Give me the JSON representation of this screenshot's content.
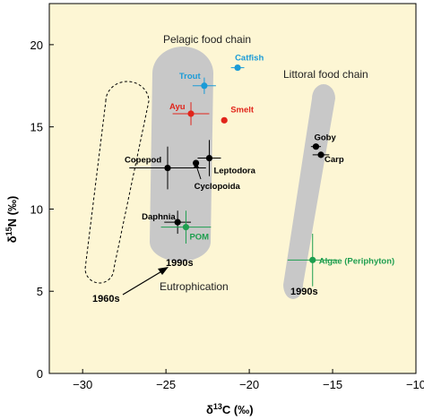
{
  "chart_data": {
    "type": "scatter",
    "xlabel": "δ13C (‰)",
    "ylabel": "δ15N (‰)",
    "xlim": [
      -32,
      -10
    ],
    "ylim": [
      0,
      22.5
    ],
    "xticks": [
      -30,
      -25,
      -20,
      -15,
      -10
    ],
    "yticks": [
      0,
      5,
      10,
      15,
      20
    ],
    "background_color": "#fdf6d4",
    "grid": false,
    "points": [
      {
        "label": "Catfish",
        "x": -20.7,
        "y": 18.6,
        "xerr": 0.4,
        "yerr": 0.0,
        "color": "#1a9bd7"
      },
      {
        "label": "Trout",
        "x": -22.7,
        "y": 17.5,
        "xerr": 0.7,
        "yerr": 0.5,
        "color": "#1a9bd7"
      },
      {
        "label": "Ayu",
        "x": -23.5,
        "y": 15.8,
        "xerr": 1.1,
        "yerr": 0.7,
        "color": "#e1251b"
      },
      {
        "label": "Smelt",
        "x": -21.5,
        "y": 15.4,
        "xerr": 0.0,
        "yerr": 0.0,
        "color": "#e1251b"
      },
      {
        "label": "Copepod",
        "x": -24.9,
        "y": 12.5,
        "xerr": 2.3,
        "yerr": 1.3,
        "color": "#000000"
      },
      {
        "label": "Leptodora",
        "x": -22.4,
        "y": 13.1,
        "xerr": 0.7,
        "yerr": 1.1,
        "color": "#000000"
      },
      {
        "label": "Cyclopoida",
        "x": -23.2,
        "y": 12.8,
        "xerr": 0.0,
        "yerr": 0.0,
        "color": "#000000"
      },
      {
        "label": "Daphnia",
        "x": -24.3,
        "y": 9.2,
        "xerr": 0.8,
        "yerr": 0.7,
        "color": "#000000"
      },
      {
        "label": "POM",
        "x": -23.8,
        "y": 8.9,
        "xerr": 1.5,
        "yerr": 1.0,
        "color": "#1e9e4f"
      },
      {
        "label": "Goby",
        "x": -16.0,
        "y": 13.8,
        "xerr": 0.3,
        "yerr": 0.0,
        "color": "#000000"
      },
      {
        "label": "Carp",
        "x": -15.7,
        "y": 13.3,
        "xerr": 0.5,
        "yerr": 0.0,
        "color": "#000000"
      },
      {
        "label": "Algae (Periphyton)",
        "x": -16.2,
        "y": 6.9,
        "xerr": 1.5,
        "yerr": 1.6,
        "color": "#1e9e4f"
      }
    ],
    "annotations": {
      "pelagic": "Pelagic food chain",
      "littoral": "Littoral food chain",
      "pelagic_year": "1990s",
      "littoral_year": "1990s",
      "old_year": "1960s",
      "process": "Eutrophication"
    }
  }
}
